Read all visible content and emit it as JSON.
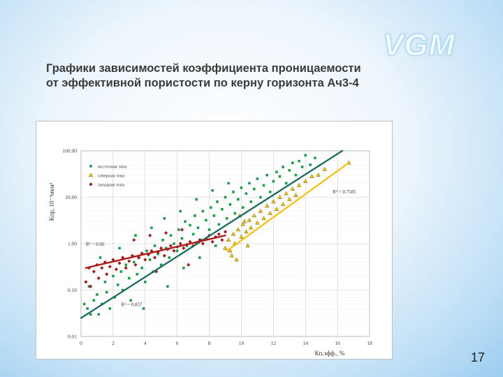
{
  "logo": "VGM",
  "title_line1": "Графики зависимостей коэффициента проницаемости",
  "title_line2": "от эффективной пористости по керну горизонта Ач3-4",
  "page_number": "17",
  "colors": {
    "east": "#1e9c4a",
    "north": "#f0c419",
    "west": "#a01e1e",
    "east_trend": "#1f6e62",
    "north_trend": "#f2c21b",
    "west_trend": "#b11d1d"
  },
  "chart_data": {
    "type": "scatter",
    "title": "",
    "xlabel": "Кп.эфф., %",
    "ylabel": "Кпр, 10⁻³мкм²",
    "x_range": [
      0,
      18
    ],
    "y_range": [
      0.01,
      100
    ],
    "y_scale": "log",
    "x_ticks": [
      "0",
      "2",
      "4",
      "6",
      "8",
      "10",
      "12",
      "14",
      "16",
      "18"
    ],
    "y_ticks": [
      "0.01",
      "0.10",
      "1.00",
      "10.00",
      "100.00"
    ],
    "grid": true,
    "legend_position": "top-left",
    "series": [
      {
        "name": "восточная зона",
        "marker": "square",
        "color": "#1e9c4a",
        "trend": {
          "x": [
            0,
            16.3
          ],
          "y": [
            0.025,
            100
          ]
        },
        "points": [
          [
            0.2,
            0.05
          ],
          [
            0.4,
            0.04
          ],
          [
            0.5,
            0.12
          ],
          [
            0.6,
            0.03
          ],
          [
            0.8,
            0.06
          ],
          [
            1.0,
            0.08
          ],
          [
            1.1,
            0.03
          ],
          [
            1.3,
            0.05
          ],
          [
            1.5,
            0.15
          ],
          [
            1.6,
            0.09
          ],
          [
            1.8,
            0.04
          ],
          [
            2.0,
            0.2
          ],
          [
            2.1,
            0.07
          ],
          [
            2.3,
            0.13
          ],
          [
            2.5,
            0.25
          ],
          [
            2.6,
            0.1
          ],
          [
            2.8,
            0.35
          ],
          [
            3.0,
            0.18
          ],
          [
            3.1,
            0.06
          ],
          [
            3.3,
            0.4
          ],
          [
            3.5,
            0.22
          ],
          [
            3.6,
            0.5
          ],
          [
            3.8,
            0.3
          ],
          [
            4.0,
            0.15
          ],
          [
            4.1,
            0.7
          ],
          [
            4.3,
            0.45
          ],
          [
            4.5,
            0.25
          ],
          [
            4.6,
            0.9
          ],
          [
            4.8,
            0.6
          ],
          [
            5.0,
            0.35
          ],
          [
            5.1,
            1.2
          ],
          [
            5.3,
            0.8
          ],
          [
            5.5,
            0.5
          ],
          [
            5.6,
            1.5
          ],
          [
            5.8,
            1.0
          ],
          [
            6.0,
            0.7
          ],
          [
            6.1,
            2.0
          ],
          [
            6.3,
            1.3
          ],
          [
            6.5,
            3.0
          ],
          [
            6.6,
            0.9
          ],
          [
            6.8,
            2.5
          ],
          [
            7.0,
            1.6
          ],
          [
            7.1,
            4.0
          ],
          [
            7.3,
            2.2
          ],
          [
            7.5,
            1.2
          ],
          [
            7.6,
            5.0
          ],
          [
            7.8,
            3.2
          ],
          [
            8.0,
            2.0
          ],
          [
            8.1,
            6.0
          ],
          [
            8.3,
            4.0
          ],
          [
            8.5,
            8.0
          ],
          [
            8.6,
            2.6
          ],
          [
            8.8,
            5.5
          ],
          [
            9.0,
            10.0
          ],
          [
            9.1,
            3.5
          ],
          [
            9.3,
            7.0
          ],
          [
            9.5,
            13.0
          ],
          [
            9.6,
            4.5
          ],
          [
            9.8,
            9.0
          ],
          [
            10.0,
            16.0
          ],
          [
            10.1,
            6.0
          ],
          [
            10.3,
            12.0
          ],
          [
            10.5,
            20.0
          ],
          [
            10.6,
            8.0
          ],
          [
            10.8,
            15.0
          ],
          [
            11.0,
            25.0
          ],
          [
            11.2,
            10.0
          ],
          [
            11.4,
            18.0
          ],
          [
            11.6,
            30.0
          ],
          [
            11.8,
            13.0
          ],
          [
            12.0,
            22.0
          ],
          [
            12.2,
            35.0
          ],
          [
            12.4,
            28.0
          ],
          [
            12.6,
            45.0
          ],
          [
            12.8,
            20.0
          ],
          [
            13.0,
            38.0
          ],
          [
            13.2,
            55.0
          ],
          [
            13.4,
            30.0
          ],
          [
            13.6,
            60.0
          ],
          [
            13.8,
            45.0
          ],
          [
            14.0,
            80.0
          ],
          [
            14.3,
            50.0
          ],
          [
            14.6,
            70.0
          ],
          [
            1.2,
            0.5
          ],
          [
            2.4,
            0.8
          ],
          [
            3.4,
            1.5
          ],
          [
            4.4,
            2.2
          ],
          [
            5.2,
            3.5
          ],
          [
            6.2,
            5.0
          ],
          [
            7.2,
            9.0
          ],
          [
            8.2,
            14.0
          ],
          [
            9.2,
            20.0
          ],
          [
            3.9,
            0.04
          ],
          [
            5.4,
            0.12
          ],
          [
            6.4,
            0.3
          ],
          [
            7.4,
            0.5
          ],
          [
            8.4,
            0.9
          ]
        ]
      },
      {
        "name": "северная зона",
        "marker": "triangle",
        "color": "#f0c419",
        "trend": {
          "x": [
            9.1,
            16.7
          ],
          "y": [
            0.7,
            55
          ]
        },
        "points": [
          [
            9.0,
            0.8
          ],
          [
            9.2,
            1.2
          ],
          [
            9.3,
            0.7
          ],
          [
            9.5,
            1.6
          ],
          [
            9.6,
            1.0
          ],
          [
            9.8,
            2.0
          ],
          [
            10.0,
            1.4
          ],
          [
            10.1,
            2.6
          ],
          [
            10.3,
            1.8
          ],
          [
            10.5,
            3.2
          ],
          [
            10.6,
            2.2
          ],
          [
            10.8,
            4.0
          ],
          [
            11.0,
            2.8
          ],
          [
            11.2,
            5.0
          ],
          [
            11.4,
            3.5
          ],
          [
            11.6,
            6.5
          ],
          [
            11.8,
            4.5
          ],
          [
            12.0,
            8.0
          ],
          [
            12.2,
            5.5
          ],
          [
            12.4,
            10.0
          ],
          [
            12.6,
            7.0
          ],
          [
            12.8,
            12.0
          ],
          [
            13.0,
            9.0
          ],
          [
            13.2,
            15.0
          ],
          [
            13.4,
            11.0
          ],
          [
            13.6,
            18.0
          ],
          [
            14.0,
            22.0
          ],
          [
            14.4,
            28.0
          ],
          [
            14.8,
            30.0
          ],
          [
            15.2,
            40.0
          ],
          [
            16.7,
            55.0
          ],
          [
            9.4,
            0.55
          ],
          [
            9.7,
            0.45
          ],
          [
            10.4,
            0.9
          ],
          [
            9.9,
            4.0
          ],
          [
            10.2,
            3.0
          ]
        ]
      },
      {
        "name": "западная зона",
        "marker": "diamond",
        "color": "#a01e1e",
        "trend": {
          "x": [
            0.3,
            9.0
          ],
          "y": [
            0.3,
            1.5
          ]
        },
        "points": [
          [
            0.3,
            0.15
          ],
          [
            0.5,
            0.3
          ],
          [
            0.6,
            0.12
          ],
          [
            0.8,
            0.25
          ],
          [
            1.0,
            0.35
          ],
          [
            1.1,
            0.18
          ],
          [
            1.3,
            0.3
          ],
          [
            1.5,
            0.4
          ],
          [
            1.6,
            0.22
          ],
          [
            1.8,
            0.32
          ],
          [
            2.0,
            0.45
          ],
          [
            2.2,
            0.28
          ],
          [
            2.4,
            0.38
          ],
          [
            2.6,
            0.5
          ],
          [
            2.8,
            0.3
          ],
          [
            3.0,
            0.42
          ],
          [
            3.2,
            0.55
          ],
          [
            3.4,
            0.35
          ],
          [
            3.6,
            0.5
          ],
          [
            3.8,
            0.62
          ],
          [
            4.0,
            0.45
          ],
          [
            4.2,
            0.58
          ],
          [
            4.4,
            0.7
          ],
          [
            4.6,
            0.5
          ],
          [
            4.8,
            0.65
          ],
          [
            5.0,
            0.8
          ],
          [
            5.2,
            0.55
          ],
          [
            5.4,
            0.75
          ],
          [
            5.6,
            0.9
          ],
          [
            5.8,
            0.7
          ],
          [
            6.0,
            0.85
          ],
          [
            6.2,
            1.0
          ],
          [
            6.4,
            0.8
          ],
          [
            6.6,
            0.95
          ],
          [
            6.8,
            1.1
          ],
          [
            7.0,
            0.9
          ],
          [
            7.2,
            1.05
          ],
          [
            7.4,
            1.2
          ],
          [
            7.6,
            1.0
          ],
          [
            7.8,
            1.3
          ],
          [
            8.0,
            1.5
          ],
          [
            8.2,
            1.1
          ],
          [
            8.4,
            1.4
          ],
          [
            8.6,
            1.6
          ],
          [
            8.8,
            1.2
          ],
          [
            9.0,
            1.8
          ],
          [
            3.3,
            1.2
          ],
          [
            4.3,
            1.5
          ],
          [
            5.3,
            1.7
          ],
          [
            6.3,
            2.0
          ],
          [
            4.7,
            0.25
          ],
          [
            6.7,
            0.35
          ]
        ]
      }
    ],
    "annotations": [
      {
        "text": "R² = 0.7505",
        "series": "северная зона"
      },
      {
        "text": "R² = 0.66",
        "series": "западная зона"
      },
      {
        "text": "R² = 0.837",
        "series": "восточная зона"
      }
    ]
  }
}
